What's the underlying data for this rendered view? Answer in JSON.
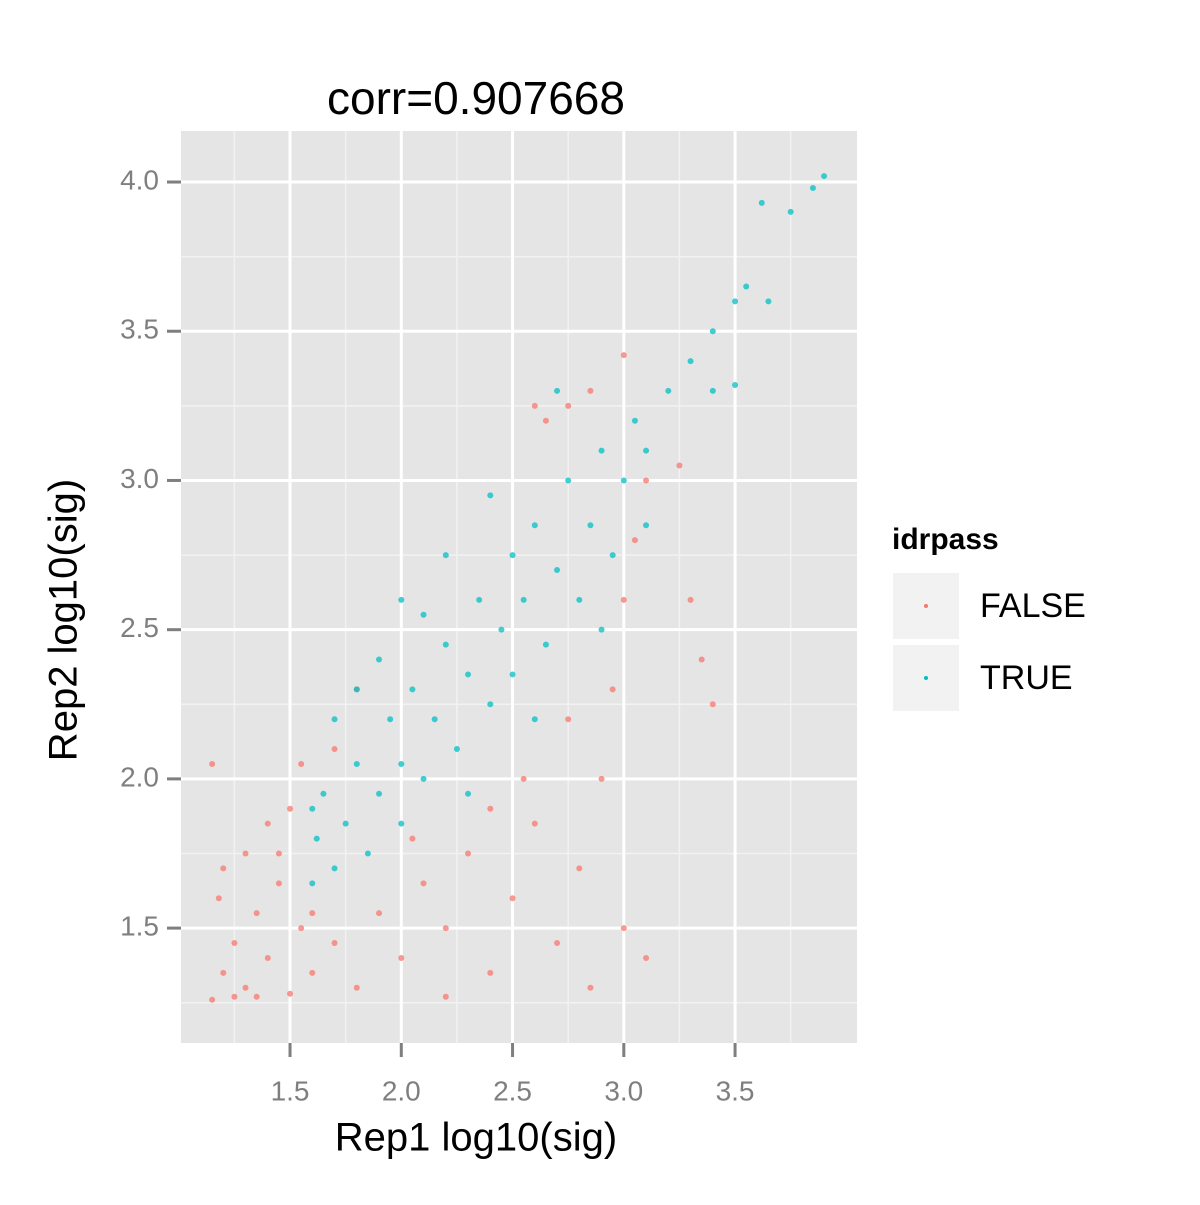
{
  "chart_data": {
    "type": "scatter",
    "title": "corr=0.907668",
    "x_label": "Rep1 log10(sig)",
    "y_label": "Rep2 log10(sig)",
    "xlim": [
      1.01,
      4.048
    ],
    "ylim": [
      1.115,
      4.171
    ],
    "xticks": [
      1.5,
      {
        "value": 2.0,
        "label": "2.0"
      },
      2.5,
      {
        "value": 3.0,
        "label": "3.0"
      },
      3.5
    ],
    "yticks": [
      1.5,
      {
        "value": 2.0,
        "label": "2.0"
      },
      2.5,
      {
        "value": 3.0,
        "label": "3.0"
      },
      3.5,
      {
        "value": 4.0,
        "label": "4.0"
      }
    ],
    "grid": true,
    "legend_title": "idrpass",
    "legend_position": "right",
    "series": [
      {
        "name": "FALSE",
        "color": "#F8766D",
        "x": [
          1.15,
          1.2,
          1.25,
          1.3,
          1.35,
          1.4,
          1.45,
          1.5,
          1.55,
          1.2,
          1.18,
          1.3,
          1.4,
          1.5,
          1.55,
          1.15,
          1.6,
          1.7,
          1.8,
          1.9,
          2.0,
          2.1,
          2.2,
          2.3,
          2.4,
          2.5,
          2.6,
          2.7,
          2.8,
          2.9,
          3.0,
          2.95,
          3.0,
          3.05,
          2.85,
          3.1,
          2.75,
          2.55,
          2.4,
          2.65,
          2.75,
          2.85,
          2.6,
          3.0,
          1.35,
          1.45,
          1.25,
          1.6,
          1.7,
          1.8,
          3.35,
          3.4,
          3.1,
          2.2,
          2.05,
          3.25,
          3.3
        ],
        "y": [
          1.26,
          1.35,
          1.45,
          1.3,
          1.55,
          1.4,
          1.65,
          1.28,
          1.5,
          1.7,
          1.6,
          1.75,
          1.85,
          1.9,
          2.05,
          2.05,
          1.35,
          1.45,
          1.3,
          1.55,
          1.4,
          1.65,
          1.5,
          1.75,
          1.35,
          1.6,
          1.85,
          1.45,
          1.7,
          2.0,
          1.5,
          2.3,
          2.6,
          2.8,
          1.3,
          1.4,
          2.2,
          2.0,
          1.9,
          3.2,
          3.25,
          3.3,
          3.25,
          3.42,
          1.27,
          1.75,
          1.27,
          1.55,
          2.1,
          2.3,
          2.4,
          2.25,
          3.0,
          1.27,
          1.8,
          3.05,
          2.6
        ]
      },
      {
        "name": "TRUE",
        "color": "#00BFC4",
        "x": [
          1.6,
          1.62,
          1.65,
          1.7,
          1.75,
          1.8,
          1.85,
          1.9,
          1.95,
          2.0,
          2.0,
          2.05,
          2.1,
          2.15,
          2.2,
          2.25,
          2.3,
          2.35,
          2.4,
          2.45,
          2.5,
          2.5,
          2.55,
          2.6,
          2.65,
          2.7,
          2.75,
          2.8,
          2.85,
          2.9,
          2.95,
          3.0,
          3.05,
          3.1,
          3.2,
          3.3,
          3.4,
          3.5,
          3.55,
          3.62,
          3.75,
          3.85,
          3.9,
          1.7,
          1.9,
          2.2,
          2.4,
          2.3,
          2.6,
          2.9,
          3.1,
          3.4,
          2.1,
          1.8,
          1.6,
          3.5,
          3.65,
          2.7,
          2.0
        ],
        "y": [
          1.65,
          1.8,
          1.95,
          1.7,
          1.85,
          2.05,
          1.75,
          1.95,
          2.2,
          1.85,
          2.05,
          2.3,
          2.0,
          2.2,
          2.45,
          2.1,
          2.35,
          2.6,
          2.25,
          2.5,
          2.75,
          2.35,
          2.6,
          2.85,
          2.45,
          2.7,
          3.0,
          2.6,
          2.85,
          3.1,
          2.75,
          3.0,
          3.2,
          3.1,
          3.3,
          3.4,
          3.5,
          3.6,
          3.65,
          3.93,
          3.9,
          3.98,
          4.02,
          2.2,
          2.4,
          2.75,
          2.95,
          1.95,
          2.2,
          2.5,
          2.85,
          3.3,
          2.55,
          2.3,
          1.9,
          3.32,
          3.6,
          3.3,
          2.6
        ]
      }
    ]
  }
}
